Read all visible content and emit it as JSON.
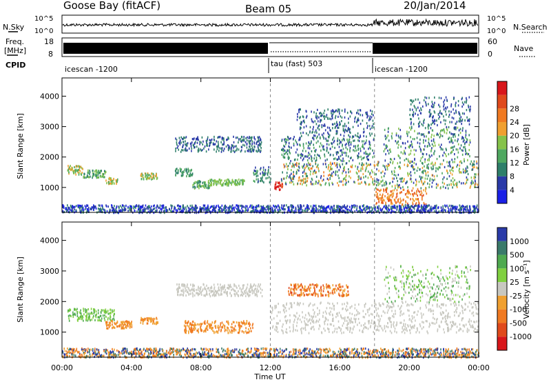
{
  "header": {
    "station": "Goose Bay (fitACF)",
    "beam": "Beam 05",
    "date": "20/Jan/2014"
  },
  "strip_labels": {
    "nsky": "N.Sky",
    "freq_top": "Freq.",
    "freq_unit": "[MHz]",
    "cpid": "CPID",
    "nsearch": "N.Search",
    "nave": "Nave",
    "noise_ticks": [
      "10^5",
      "10^0"
    ],
    "noise_ticks_right": [
      "10^5",
      "10^0"
    ],
    "freq_ticks": [
      "18",
      "8"
    ],
    "nave_ticks": [
      "60",
      "0"
    ]
  },
  "cpid_segments": [
    {
      "label": "icescan -1200",
      "start_h": 0,
      "end_h": 12
    },
    {
      "label": "tau (fast) 503",
      "start_h": 12,
      "end_h": 18
    },
    {
      "label": "icescan -1200",
      "start_h": 18,
      "end_h": 24
    }
  ],
  "xaxis": {
    "label": "Time UT",
    "ticks": [
      "00:00",
      "04:00",
      "08:00",
      "12:00",
      "16:00",
      "20:00",
      "00:00"
    ],
    "range_h": [
      0,
      24
    ]
  },
  "chart_data": [
    {
      "type": "heatmap",
      "name": "power",
      "ylabel": "Slant Range [km]",
      "yticks": [
        1000,
        2000,
        3000,
        4000
      ],
      "ylim": [
        180,
        4600
      ],
      "colorbar_label": "Power [dB]",
      "colorbar_ticks": [
        "4",
        "8",
        "12",
        "16",
        "20",
        "24",
        "28"
      ],
      "colorbar_colors": [
        "#1a20e6",
        "#2a3aa8",
        "#2e7f6a",
        "#4fa860",
        "#86c34a",
        "#f0a030",
        "#f07a22",
        "#e04a1c",
        "#d8161a"
      ],
      "scatter_bands": [
        {
          "t": [
            0.3,
            1.2
          ],
          "r": [
            1450,
            1750
          ],
          "c": [
            3,
            4,
            5
          ]
        },
        {
          "t": [
            1.2,
            2.5
          ],
          "r": [
            1350,
            1600
          ],
          "c": [
            2,
            3,
            4
          ]
        },
        {
          "t": [
            2.5,
            3.2
          ],
          "r": [
            1150,
            1350
          ],
          "c": [
            3,
            4,
            5
          ]
        },
        {
          "t": [
            4.5,
            5.5
          ],
          "r": [
            1300,
            1500
          ],
          "c": [
            3,
            4,
            5
          ]
        },
        {
          "t": [
            6.5,
            7.5
          ],
          "r": [
            1400,
            1650
          ],
          "c": [
            2,
            3
          ]
        },
        {
          "t": [
            7.5,
            8.5
          ],
          "r": [
            1000,
            1250
          ],
          "c": [
            2,
            3,
            4
          ]
        },
        {
          "t": [
            8.5,
            10.5
          ],
          "r": [
            1100,
            1300
          ],
          "c": [
            3,
            4
          ]
        },
        {
          "t": [
            6.5,
            11.5
          ],
          "r": [
            2200,
            2700
          ],
          "c": [
            1,
            2
          ]
        },
        {
          "t": [
            11.0,
            12.0
          ],
          "r": [
            1200,
            1700
          ],
          "c": [
            1,
            2,
            3
          ]
        },
        {
          "t": [
            12.2,
            12.7
          ],
          "r": [
            950,
            1200
          ],
          "c": [
            7,
            8
          ]
        },
        {
          "t": [
            12.6,
            18.0
          ],
          "r": [
            1100,
            1850
          ],
          "c": [
            1,
            2,
            3,
            4,
            5,
            6
          ]
        },
        {
          "t": [
            12.6,
            18.0
          ],
          "r": [
            1900,
            2700
          ],
          "c": [
            1,
            2,
            3
          ]
        },
        {
          "t": [
            13.5,
            18.0
          ],
          "r": [
            2700,
            3600
          ],
          "c": [
            1,
            2
          ]
        },
        {
          "t": [
            18.0,
            24.0
          ],
          "r": [
            1000,
            1900
          ],
          "c": [
            1,
            2,
            3,
            4,
            5
          ]
        },
        {
          "t": [
            18.0,
            21.0
          ],
          "r": [
            450,
            1000
          ],
          "c": [
            5,
            6,
            7
          ]
        },
        {
          "t": [
            18.5,
            23.5
          ],
          "r": [
            1900,
            3000
          ],
          "c": [
            1,
            2,
            3,
            4
          ]
        },
        {
          "t": [
            20.0,
            23.5
          ],
          "r": [
            3000,
            4000
          ],
          "c": [
            1,
            2
          ]
        },
        {
          "t": [
            0.0,
            24.0
          ],
          "r": [
            200,
            450
          ],
          "c": [
            0,
            1,
            2
          ]
        }
      ]
    },
    {
      "type": "heatmap",
      "name": "velocity",
      "ylabel": "Slant Range [km]",
      "yticks": [
        1000,
        2000,
        3000,
        4000
      ],
      "ylim": [
        180,
        4600
      ],
      "colorbar_label": "Velocity [m s⁻¹]",
      "colorbar_ticks": [
        "1000",
        "500",
        "100",
        "25",
        "-25",
        "-100",
        "-500",
        "-1000"
      ],
      "colorbar_colors": [
        "#2a3aa8",
        "#3a7a6a",
        "#4faa50",
        "#80d040",
        "#c8c8c0",
        "#f0a030",
        "#f07a22",
        "#e04a1c",
        "#d8161a"
      ],
      "scatter_bands": [
        {
          "t": [
            0.3,
            3.0
          ],
          "r": [
            1400,
            1800
          ],
          "c": [
            2,
            3
          ]
        },
        {
          "t": [
            2.5,
            4.0
          ],
          "r": [
            1150,
            1400
          ],
          "c": [
            5,
            6
          ]
        },
        {
          "t": [
            4.5,
            5.5
          ],
          "r": [
            1300,
            1500
          ],
          "c": [
            5,
            6
          ]
        },
        {
          "t": [
            7.0,
            11.0
          ],
          "r": [
            1000,
            1400
          ],
          "c": [
            5,
            6
          ]
        },
        {
          "t": [
            6.5,
            11.5
          ],
          "r": [
            2200,
            2600
          ],
          "c": [
            4
          ]
        },
        {
          "t": [
            12.0,
            18.0
          ],
          "r": [
            1000,
            2000
          ],
          "c": [
            4
          ]
        },
        {
          "t": [
            13.0,
            16.5
          ],
          "r": [
            2200,
            2600
          ],
          "c": [
            5,
            6,
            7
          ]
        },
        {
          "t": [
            18.0,
            24.0
          ],
          "r": [
            1000,
            2000
          ],
          "c": [
            4
          ]
        },
        {
          "t": [
            18.5,
            23.5
          ],
          "r": [
            2000,
            3200
          ],
          "c": [
            2,
            3,
            4
          ]
        },
        {
          "t": [
            0.0,
            24.0
          ],
          "r": [
            200,
            500
          ],
          "c": [
            0,
            1,
            5,
            6
          ]
        }
      ]
    }
  ]
}
